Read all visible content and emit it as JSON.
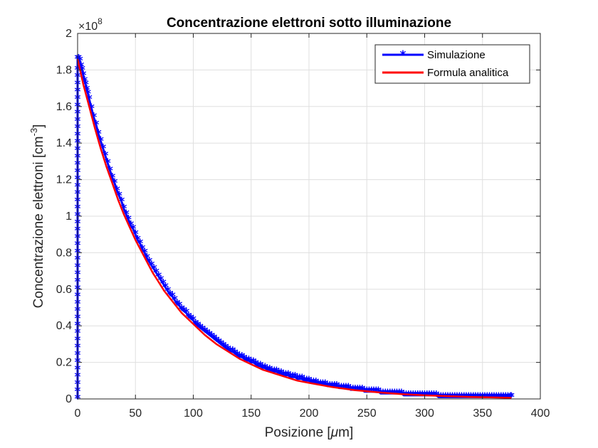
{
  "chart_data": {
    "type": "line",
    "title": "Concentrazione elettroni sotto illuminazione",
    "xlabel": "Posizione [",
    "xlabel_unit_symbol": "μ",
    "xlabel_unit_rest": "m]",
    "ylabel": "Concentrazione elettroni [cm",
    "ylabel_superscript": "-3",
    "ylabel_close": "]",
    "y_exponent_base": "×10",
    "y_exponent_power": "8",
    "xlim": [
      0,
      400
    ],
    "ylim": [
      0,
      2
    ],
    "x_ticks": [
      0,
      50,
      100,
      150,
      200,
      250,
      300,
      350,
      400
    ],
    "x_tick_labels": [
      "0",
      "50",
      "100",
      "150",
      "200",
      "250",
      "300",
      "350",
      "400"
    ],
    "y_ticks": [
      0,
      0.2,
      0.4,
      0.6,
      0.8,
      1,
      1.2,
      1.4,
      1.6,
      1.8,
      2
    ],
    "y_tick_labels": [
      "0",
      "0.2",
      "0.4",
      "0.6",
      "0.8",
      "1",
      "1.2",
      "1.4",
      "1.6",
      "1.8",
      "2"
    ],
    "grid": true,
    "legend_position": "top-right",
    "series": [
      {
        "name": "Simulazione",
        "color": "#0000ff",
        "marker": "asterisk",
        "x": [
          0,
          0,
          0,
          0,
          0,
          0,
          0,
          0,
          0,
          0,
          0,
          0,
          0,
          0,
          0,
          0,
          0,
          0,
          0,
          0,
          0,
          0,
          0,
          0,
          0,
          0,
          0,
          0,
          0,
          0,
          0,
          0,
          0,
          0,
          0,
          0,
          0,
          0,
          0,
          0,
          0,
          0,
          0,
          0,
          0,
          0,
          0,
          1,
          2,
          3,
          4,
          5,
          6,
          7,
          8,
          9,
          10,
          12,
          14,
          16,
          18,
          20,
          22,
          24,
          26,
          28,
          30,
          32,
          34,
          36,
          38,
          40,
          42,
          44,
          46,
          48,
          50,
          52,
          54,
          56,
          58,
          60,
          62,
          64,
          66,
          68,
          70,
          72,
          74,
          76,
          78,
          80,
          82,
          84,
          86,
          88,
          90,
          92,
          94,
          96,
          98,
          100,
          102,
          104,
          106,
          108,
          110,
          112,
          114,
          116,
          118,
          120,
          122,
          124,
          126,
          128,
          130,
          132,
          134,
          136,
          138,
          140,
          142,
          144,
          146,
          148,
          150,
          152,
          154,
          156,
          158,
          160,
          162,
          164,
          166,
          168,
          170,
          172,
          174,
          176,
          178,
          180,
          182,
          184,
          186,
          188,
          190,
          192,
          194,
          196,
          198,
          200,
          202,
          204,
          206,
          208,
          210,
          212,
          214,
          216,
          218,
          220,
          222,
          224,
          226,
          228,
          230,
          232,
          234,
          236,
          238,
          240,
          242,
          244,
          246,
          248,
          250,
          252,
          254,
          256,
          258,
          260,
          262,
          264,
          266,
          268,
          270,
          272,
          274,
          276,
          278,
          280,
          282,
          284,
          286,
          288,
          290,
          292,
          294,
          296,
          298,
          300,
          302,
          304,
          306,
          308,
          310,
          312,
          314,
          316,
          318,
          320,
          322,
          324,
          326,
          328,
          330,
          332,
          334,
          336,
          338,
          340,
          342,
          344,
          346,
          348,
          350,
          352,
          354,
          356,
          358,
          360,
          362,
          364,
          366,
          368,
          370,
          372,
          374,
          375
        ],
        "y": [
          0.0,
          0.04,
          0.08,
          0.12,
          0.16,
          0.2,
          0.24,
          0.28,
          0.32,
          0.36,
          0.4,
          0.44,
          0.48,
          0.52,
          0.56,
          0.6,
          0.64,
          0.68,
          0.72,
          0.76,
          0.8,
          0.84,
          0.88,
          0.92,
          0.96,
          1.0,
          1.04,
          1.08,
          1.12,
          1.16,
          1.2,
          1.24,
          1.28,
          1.32,
          1.36,
          1.4,
          1.44,
          1.48,
          1.52,
          1.56,
          1.6,
          1.64,
          1.68,
          1.72,
          1.76,
          1.8,
          1.86,
          1.86,
          1.85,
          1.82,
          1.8,
          1.77,
          1.74,
          1.72,
          1.69,
          1.67,
          1.64,
          1.59,
          1.54,
          1.5,
          1.45,
          1.41,
          1.37,
          1.33,
          1.29,
          1.25,
          1.21,
          1.18,
          1.14,
          1.11,
          1.08,
          1.04,
          1.01,
          0.98,
          0.95,
          0.93,
          0.9,
          0.87,
          0.85,
          0.82,
          0.8,
          0.77,
          0.75,
          0.73,
          0.71,
          0.69,
          0.67,
          0.65,
          0.63,
          0.61,
          0.59,
          0.57,
          0.56,
          0.54,
          0.52,
          0.51,
          0.49,
          0.48,
          0.47,
          0.45,
          0.44,
          0.43,
          0.41,
          0.4,
          0.39,
          0.38,
          0.37,
          0.36,
          0.35,
          0.34,
          0.33,
          0.32,
          0.31,
          0.3,
          0.29,
          0.28,
          0.27,
          0.26,
          0.26,
          0.25,
          0.24,
          0.23,
          0.23,
          0.22,
          0.21,
          0.21,
          0.2,
          0.2,
          0.19,
          0.18,
          0.18,
          0.17,
          0.17,
          0.16,
          0.16,
          0.15,
          0.15,
          0.15,
          0.14,
          0.14,
          0.13,
          0.13,
          0.13,
          0.12,
          0.12,
          0.12,
          0.11,
          0.11,
          0.11,
          0.1,
          0.1,
          0.1,
          0.09,
          0.09,
          0.09,
          0.08,
          0.08,
          0.08,
          0.08,
          0.07,
          0.07,
          0.07,
          0.07,
          0.07,
          0.06,
          0.06,
          0.06,
          0.06,
          0.06,
          0.05,
          0.05,
          0.05,
          0.05,
          0.05,
          0.05,
          0.04,
          0.04,
          0.04,
          0.04,
          0.04,
          0.04,
          0.04,
          0.03,
          0.03,
          0.03,
          0.03,
          0.03,
          0.03,
          0.03,
          0.03,
          0.03,
          0.03,
          0.02,
          0.02,
          0.02,
          0.02,
          0.02,
          0.02,
          0.02,
          0.02,
          0.02,
          0.02,
          0.02,
          0.02,
          0.02,
          0.02,
          0.02,
          0.01,
          0.01,
          0.01,
          0.01,
          0.01,
          0.01,
          0.01,
          0.01,
          0.01,
          0.01,
          0.01,
          0.01,
          0.01,
          0.01,
          0.01,
          0.01,
          0.01,
          0.01,
          0.01,
          0.01,
          0.01,
          0.01,
          0.01,
          0.01,
          0.01,
          0.01,
          0.01,
          0.01,
          0.01,
          0.01,
          0.01,
          0.01,
          0.01
        ]
      },
      {
        "name": "Formula analitica",
        "color": "#ff0000",
        "marker": "none",
        "x": [
          0,
          5,
          10,
          15,
          20,
          25,
          30,
          35,
          40,
          45,
          50,
          55,
          60,
          65,
          70,
          75,
          80,
          85,
          90,
          95,
          100,
          110,
          120,
          130,
          140,
          150,
          160,
          170,
          180,
          190,
          200,
          220,
          240,
          260,
          280,
          300,
          320,
          340,
          360,
          375
        ],
        "y": [
          1.86,
          1.72,
          1.6,
          1.48,
          1.37,
          1.27,
          1.18,
          1.09,
          1.01,
          0.94,
          0.87,
          0.81,
          0.75,
          0.69,
          0.64,
          0.59,
          0.55,
          0.51,
          0.47,
          0.44,
          0.41,
          0.35,
          0.3,
          0.26,
          0.22,
          0.19,
          0.16,
          0.14,
          0.12,
          0.1,
          0.088,
          0.065,
          0.048,
          0.036,
          0.026,
          0.02,
          0.015,
          0.011,
          0.008,
          0.006
        ]
      }
    ]
  }
}
